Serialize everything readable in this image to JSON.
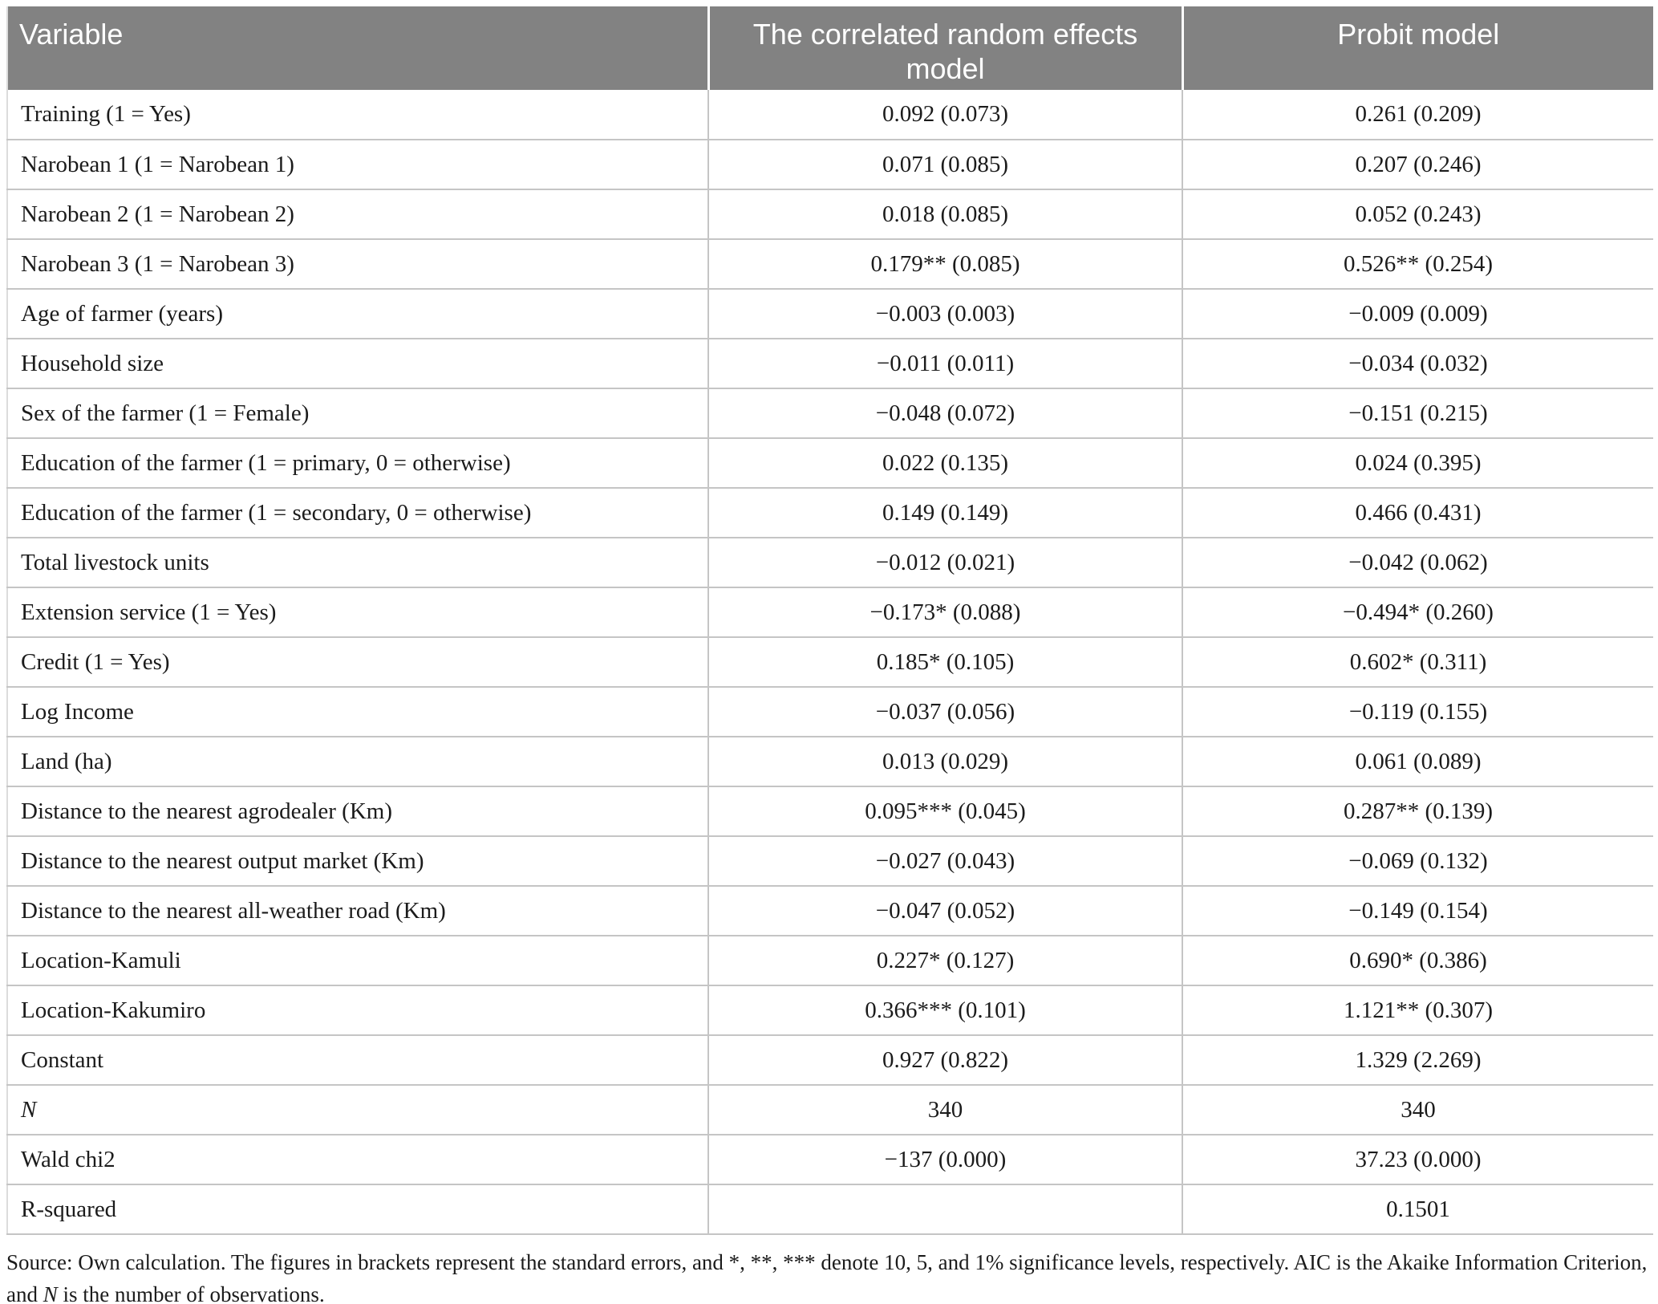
{
  "table": {
    "columns": [
      "Variable",
      "The correlated random effects model",
      "Probit model"
    ],
    "rows": [
      {
        "label": "Training (1 = Yes)",
        "cre": "0.092 (0.073)",
        "probit": "0.261 (0.209)"
      },
      {
        "label": "Narobean 1 (1 = Narobean 1)",
        "cre": "0.071 (0.085)",
        "probit": "0.207 (0.246)"
      },
      {
        "label": "Narobean 2 (1 = Narobean 2)",
        "cre": "0.018 (0.085)",
        "probit": "0.052 (0.243)"
      },
      {
        "label": "Narobean 3 (1 = Narobean 3)",
        "cre": "0.179** (0.085)",
        "probit": "0.526** (0.254)"
      },
      {
        "label": "Age of farmer (years)",
        "cre": "−0.003 (0.003)",
        "probit": "−0.009 (0.009)"
      },
      {
        "label": "Household size",
        "cre": "−0.011 (0.011)",
        "probit": "−0.034 (0.032)"
      },
      {
        "label": "Sex of the farmer (1 = Female)",
        "cre": "−0.048 (0.072)",
        "probit": "−0.151 (0.215)"
      },
      {
        "label": "Education of the farmer (1 = primary, 0 = otherwise)",
        "cre": "0.022 (0.135)",
        "probit": "0.024 (0.395)"
      },
      {
        "label": "Education of the farmer (1 = secondary, 0 = otherwise)",
        "cre": "0.149 (0.149)",
        "probit": "0.466 (0.431)"
      },
      {
        "label": "Total livestock units",
        "cre": "−0.012 (0.021)",
        "probit": "−0.042 (0.062)"
      },
      {
        "label": "Extension service (1 = Yes)",
        "cre": "−0.173* (0.088)",
        "probit": "−0.494* (0.260)"
      },
      {
        "label": "Credit (1 = Yes)",
        "cre": "0.185* (0.105)",
        "probit": "0.602* (0.311)"
      },
      {
        "label": "Log Income",
        "cre": "−0.037 (0.056)",
        "probit": "−0.119 (0.155)"
      },
      {
        "label": "Land (ha)",
        "cre": "0.013 (0.029)",
        "probit": "0.061 (0.089)"
      },
      {
        "label": "Distance to the nearest agrodealer (Km)",
        "cre": "0.095*** (0.045)",
        "probit": "0.287** (0.139)"
      },
      {
        "label": "Distance to the nearest output market (Km)",
        "cre": "−0.027 (0.043)",
        "probit": "−0.069 (0.132)"
      },
      {
        "label": "Distance to the nearest all-weather road (Km)",
        "cre": "−0.047 (0.052)",
        "probit": "−0.149 (0.154)"
      },
      {
        "label": "Location-Kamuli",
        "cre": "0.227* (0.127)",
        "probit": "0.690* (0.386)"
      },
      {
        "label": "Location-Kakumiro",
        "cre": "0.366*** (0.101)",
        "probit": "1.121** (0.307)"
      },
      {
        "label": "Constant",
        "cre": "0.927 (0.822)",
        "probit": "1.329 (2.269)"
      },
      {
        "label": "N",
        "italic": true,
        "cre": "340",
        "probit": "340"
      },
      {
        "label": "Wald chi2",
        "cre": "−137 (0.000)",
        "probit": "37.23 (0.000)"
      },
      {
        "label": "R-squared",
        "cre": "",
        "probit": "0.1501"
      }
    ]
  },
  "footnote": {
    "line1": "Source: Own calculation. The figures in brackets represent the standard errors, and *, **, *** denote 10, 5, and 1% significance levels, respectively. AIC is the Akaike Information Criterion,",
    "line2_pre": "and ",
    "line2_italic": "N",
    "line2_post": " is the number of observations."
  },
  "colors": {
    "header_bg": "#828282",
    "header_text": "#ffffff",
    "body_text": "#1b1b1b",
    "border": "#c5c5c5"
  }
}
